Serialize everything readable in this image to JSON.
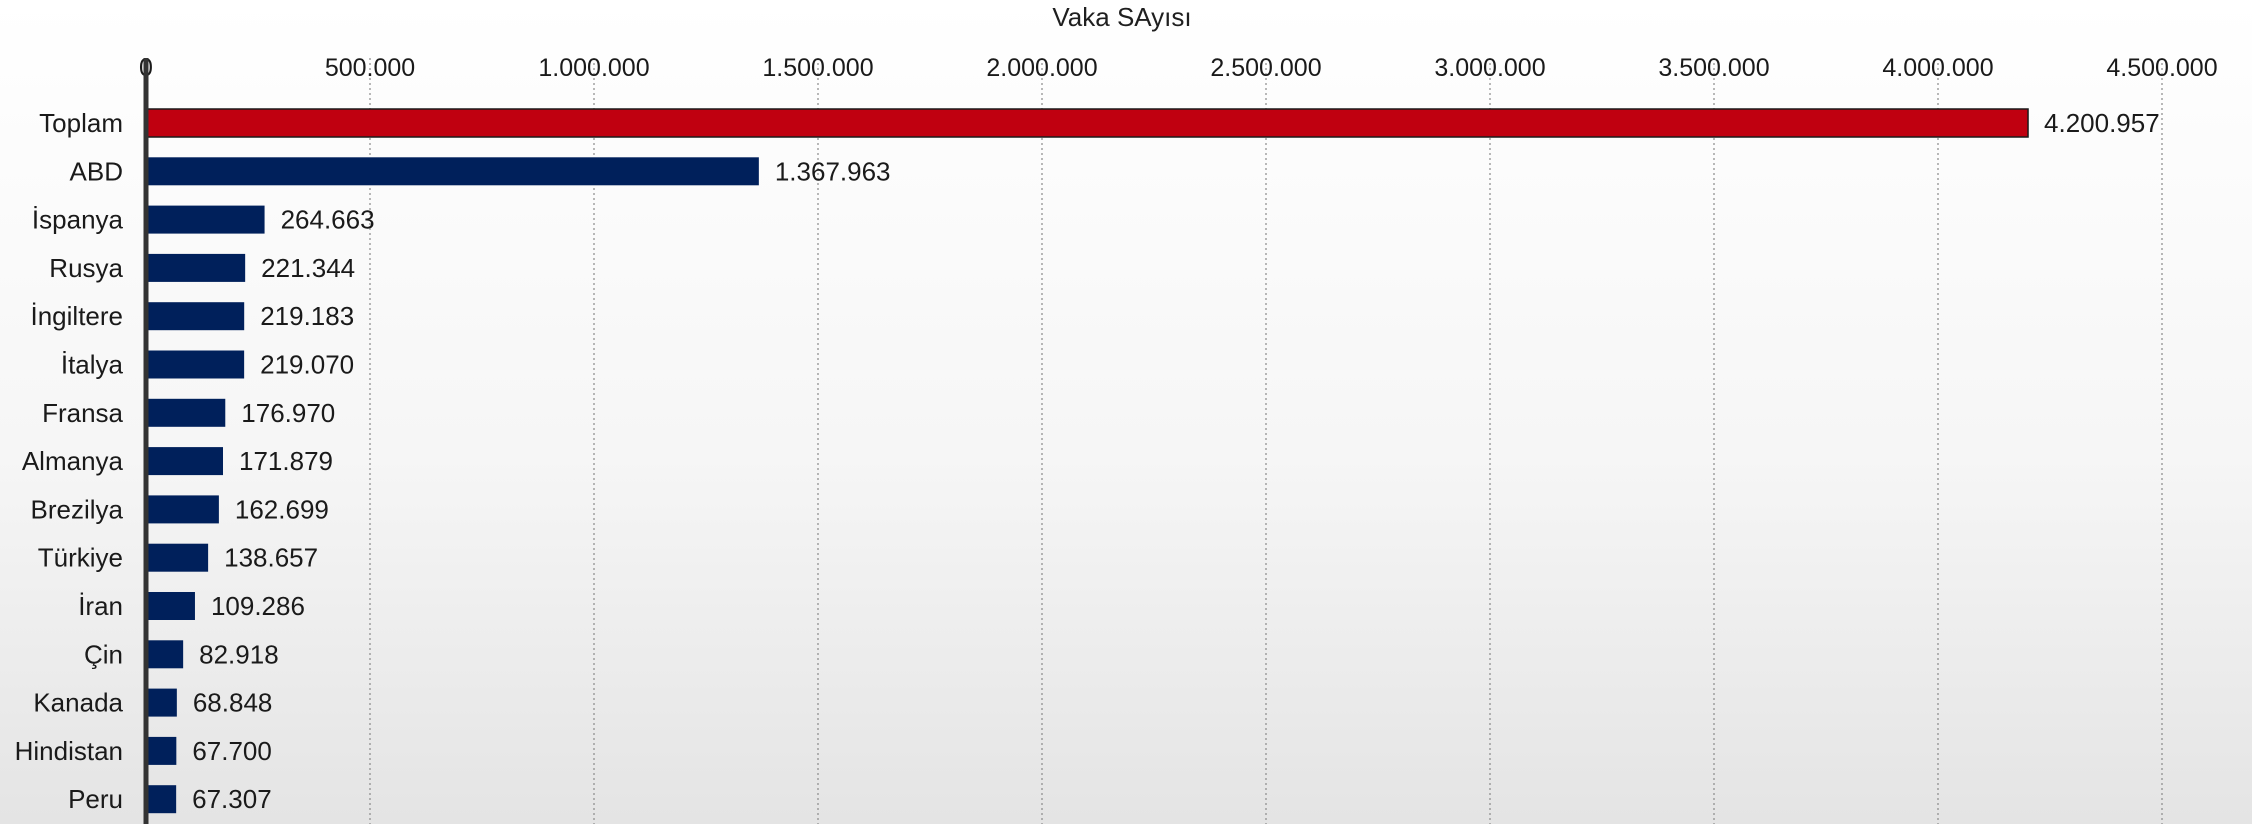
{
  "chart_data": {
    "type": "bar",
    "orientation": "horizontal",
    "title": "Vaka SAyısı",
    "xlabel": "",
    "ylabel": "",
    "xlim": [
      0,
      4500000
    ],
    "ticks": [
      0,
      500000,
      1000000,
      1500000,
      2000000,
      2500000,
      3000000,
      3500000,
      4000000,
      4500000
    ],
    "tick_labels": [
      "0",
      "500.000",
      "1.000.000",
      "1.500.000",
      "2.000.000",
      "2.500.000",
      "3.000.000",
      "3.500.000",
      "4.000.000",
      "4.500.000"
    ],
    "categories": [
      "Toplam",
      "ABD",
      "İspanya",
      "Rusya",
      "İngiltere",
      "İtalya",
      "Fransa",
      "Almanya",
      "Brezilya",
      "Türkiye",
      "İran",
      "Çin",
      "Kanada",
      "Hindistan",
      "Peru"
    ],
    "values": [
      4200957,
      1367963,
      264663,
      221344,
      219183,
      219070,
      176970,
      171879,
      162699,
      138657,
      109286,
      82918,
      68848,
      67700,
      67307
    ],
    "value_labels": [
      "4.200.957",
      "1.367.963",
      "264.663",
      "221.344",
      "219.183",
      "219.070",
      "176.970",
      "171.879",
      "162.699",
      "138.657",
      "109.286",
      "82.918",
      "68.848",
      "67.700",
      "67.307"
    ],
    "grid": true,
    "axis_position": "top",
    "colors": {
      "highlight": "#c00010",
      "bar": "#00205b",
      "highlight_stroke": "#1a1a1a"
    }
  }
}
